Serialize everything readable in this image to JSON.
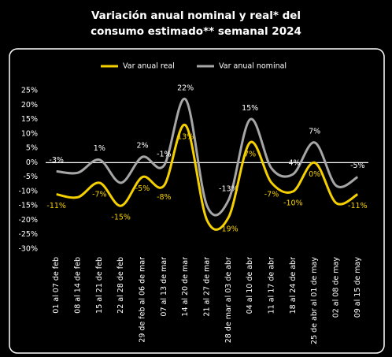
{
  "chart_data": {
    "type": "line",
    "title": [
      "Variación anual nominal y real* del",
      "consumo estimado** semanal 2024"
    ],
    "categories": [
      "01 al 07 de feb",
      "08 al 14 de feb",
      "15 al 21 de feb",
      "22 al 28 de feb",
      "29 de feb al 06 de mar",
      "07 al 13 de mar",
      "14 al 20 de mar",
      "21 al 27 de mar",
      "28 de mar al 03 de abr",
      "04 al 10 de abr",
      "11 al 17 de abr",
      "18 al 24 de abr",
      "25 de abr al 01 de may",
      "02 al 08 de may",
      "09 al 15 de may"
    ],
    "series": [
      {
        "name": "Var anual real",
        "color": "#f5d000",
        "values": [
          -11,
          -12,
          -7,
          -15,
          -5,
          -8,
          13,
          -20,
          -19,
          7,
          -7,
          -10,
          0,
          -14,
          -11
        ],
        "value_labels": [
          "-11%",
          null,
          "-7%",
          "-15%",
          "-5%",
          "-8%",
          "13%",
          null,
          "-19%",
          "7%",
          "-7%",
          "-10%",
          "0%",
          null,
          "-11%"
        ]
      },
      {
        "name": "Var anual nominal",
        "color": "#a6a6a6",
        "values": [
          -3,
          -3.5,
          1,
          -7,
          2,
          -1,
          22,
          -15,
          -13,
          15,
          -2,
          -4,
          7,
          -8,
          -5
        ],
        "value_labels": [
          "-3%",
          null,
          "1%",
          null,
          "2%",
          "-1%",
          "22%",
          null,
          "-13%",
          "15%",
          null,
          "-4%",
          "7%",
          null,
          "-5%"
        ]
      }
    ],
    "ylim": [
      -30,
      25
    ],
    "yticks": [
      {
        "value": 25,
        "label": "25%"
      },
      {
        "value": 20,
        "label": "20%"
      },
      {
        "value": 15,
        "label": "15%"
      },
      {
        "value": 10,
        "label": "10%"
      },
      {
        "value": 5,
        "label": "5%"
      },
      {
        "value": 0,
        "label": "0%"
      },
      {
        "value": -5,
        "label": "-5%"
      },
      {
        "value": -10,
        "label": "-10%"
      },
      {
        "value": -15,
        "label": "-15%"
      },
      {
        "value": -20,
        "label": "-20%"
      },
      {
        "value": -25,
        "label": "-25%"
      },
      {
        "value": -30,
        "label": "-30%"
      }
    ],
    "zero_line": true,
    "legend": "top"
  }
}
